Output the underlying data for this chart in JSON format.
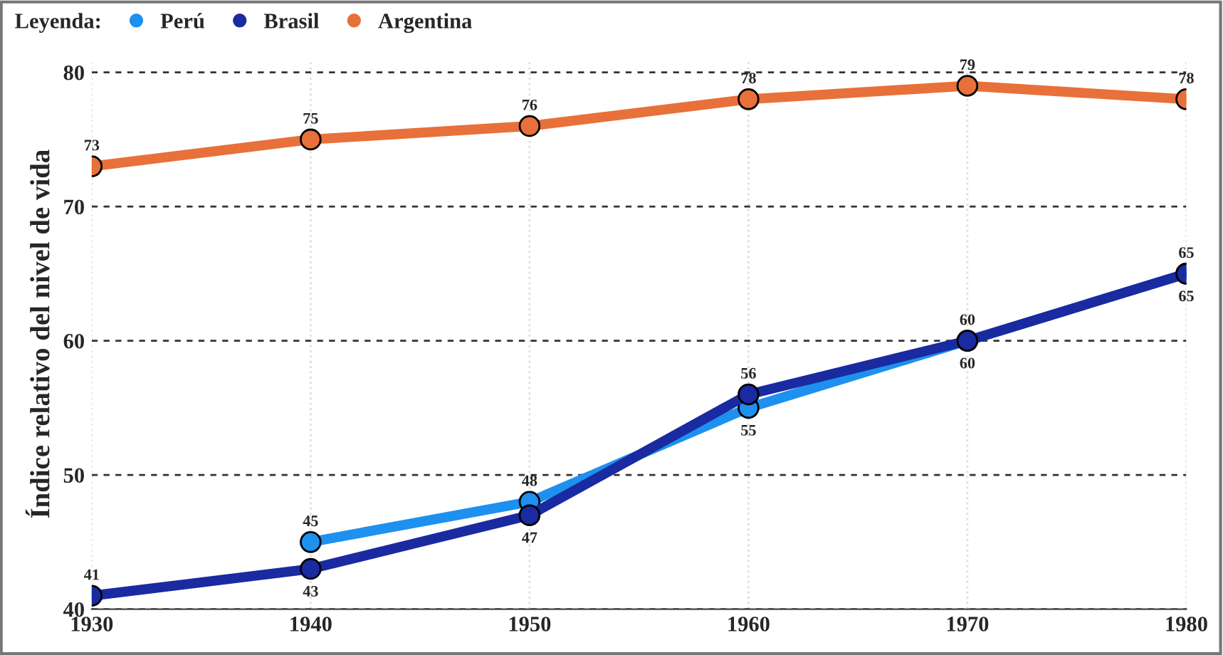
{
  "chart_data": {
    "type": "line",
    "ylabel": "Índice relativo del nivel de vida",
    "legend_title": "Leyenda:",
    "legend": "top left",
    "x": [
      1930,
      1940,
      1950,
      1960,
      1970,
      1980
    ],
    "xlim": [
      1930,
      1980
    ],
    "xticks": [
      1930,
      1940,
      1950,
      1960,
      1970,
      1980
    ],
    "ylim": [
      40,
      81
    ],
    "yticks": [
      40,
      50,
      60,
      70,
      80
    ],
    "grid": true,
    "marker": "circle",
    "line_style": "solid",
    "data_labels": true,
    "series": [
      {
        "name": "Perú",
        "color": "#1e90ef",
        "values": [
          null,
          45,
          48,
          55,
          60,
          65
        ]
      },
      {
        "name": "Brasil",
        "color": "#1a2aa0",
        "values": [
          41,
          43,
          47,
          56,
          60,
          65
        ]
      },
      {
        "name": "Argentina",
        "color": "#e8703a",
        "values": [
          73,
          75,
          76,
          78,
          79,
          78
        ]
      }
    ]
  }
}
